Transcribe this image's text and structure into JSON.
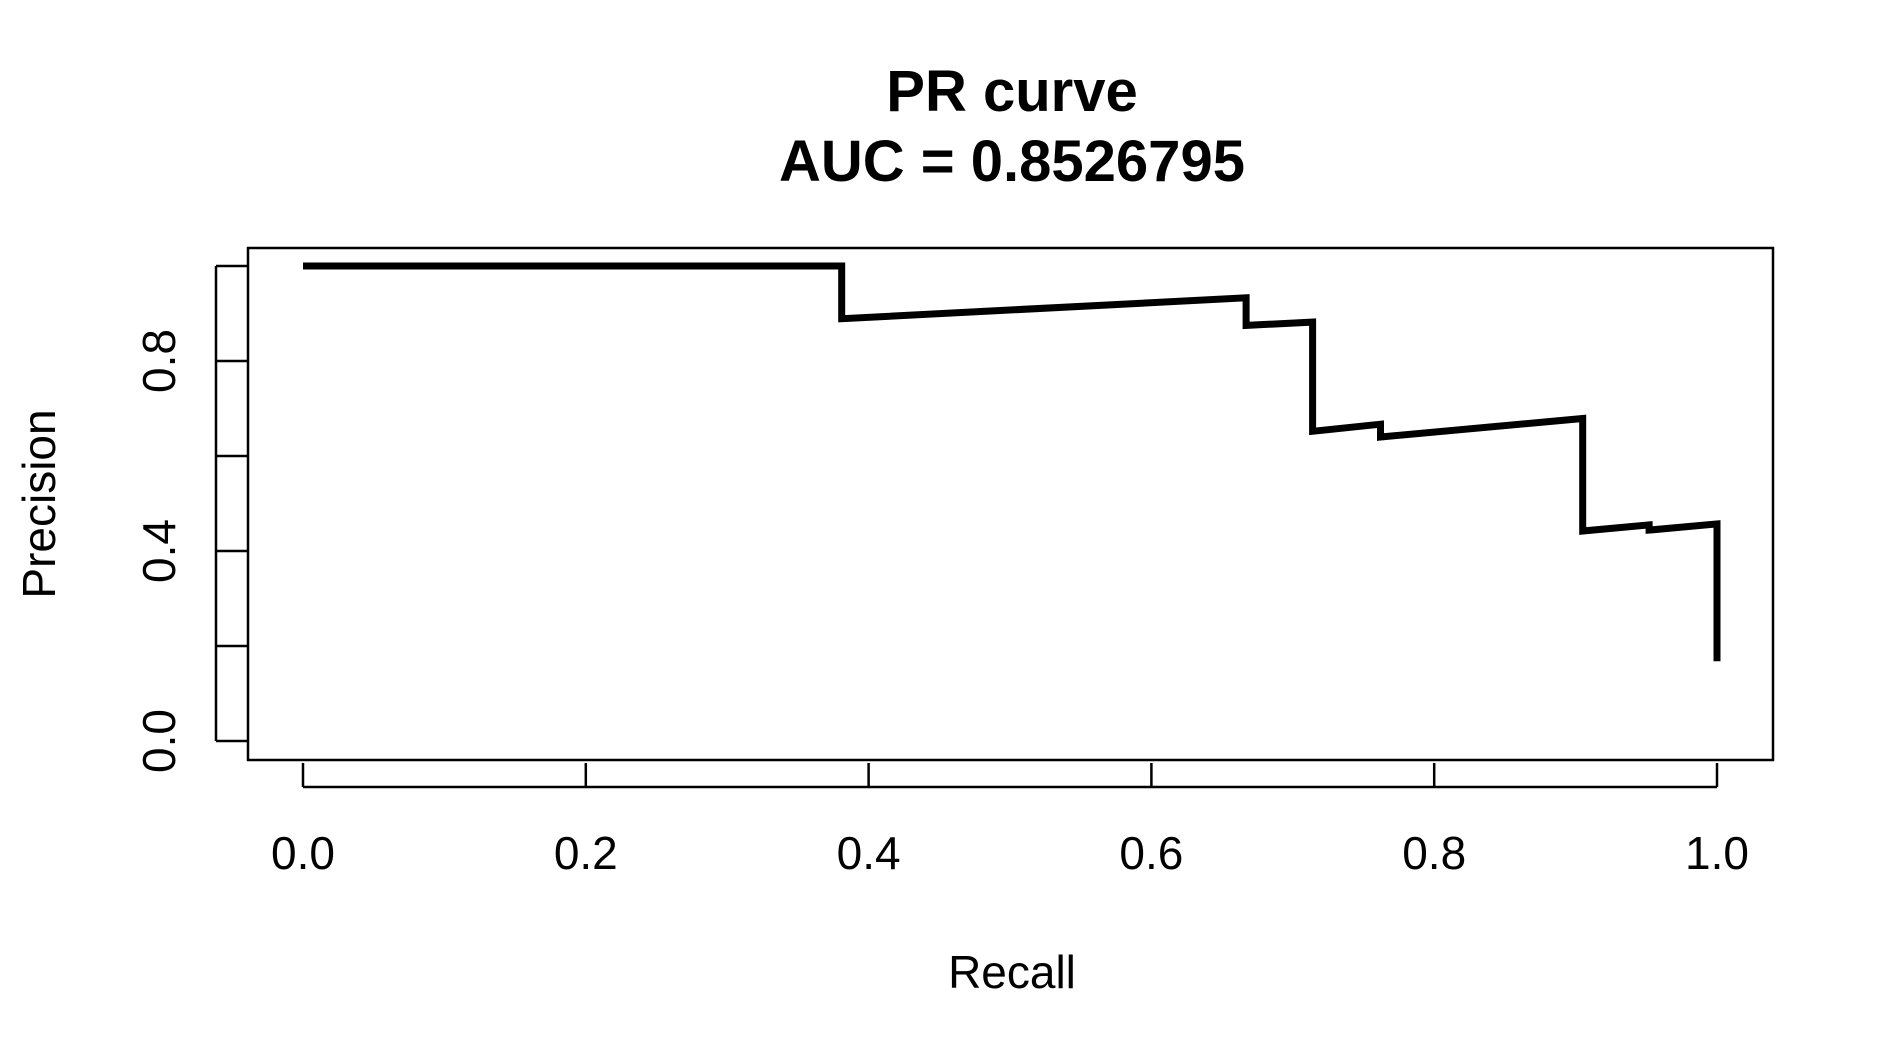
{
  "chart_data": {
    "type": "line",
    "title": "PR curve",
    "subtitle": "AUC = 0.8526795",
    "xlabel": "Recall",
    "ylabel": "Precision",
    "xlim": [
      0,
      1
    ],
    "ylim": [
      0,
      1
    ],
    "x_ticks": [
      0.0,
      0.2,
      0.4,
      0.6,
      0.8,
      1.0
    ],
    "x_tick_labels": [
      "0.0",
      "0.2",
      "0.4",
      "0.6",
      "0.8",
      "1.0"
    ],
    "y_ticks": [
      0.0,
      0.2,
      0.4,
      0.6,
      0.8,
      1.0
    ],
    "y_tick_labels": [
      "0.0",
      "",
      "0.4",
      "",
      "0.8",
      ""
    ],
    "grid": false,
    "legend": "none",
    "series": [
      {
        "color": "#000000",
        "x": [
          0.0,
          0.381,
          0.381,
          0.667,
          0.667,
          0.714,
          0.714,
          0.762,
          0.762,
          0.905,
          0.905,
          0.952,
          0.952,
          1.0,
          1.0
        ],
        "y": [
          1.0,
          1.0,
          0.889,
          0.933,
          0.875,
          0.882,
          0.652,
          0.667,
          0.64,
          0.679,
          0.442,
          0.455,
          0.444,
          0.457,
          0.168
        ]
      }
    ]
  }
}
